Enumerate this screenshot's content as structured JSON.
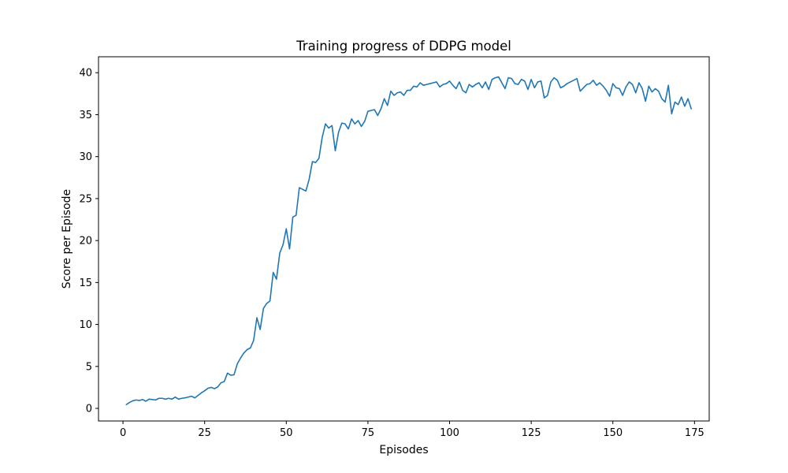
{
  "chart_data": {
    "type": "line",
    "title": "Training progress of DDPG model",
    "xlabel": "Episodes",
    "ylabel": "Score per Episode",
    "xlim": [
      -7.5,
      179.5
    ],
    "ylim": [
      -1.5,
      41.9
    ],
    "x_ticks": [
      0,
      25,
      50,
      75,
      100,
      125,
      150,
      175
    ],
    "y_ticks": [
      0,
      5,
      10,
      15,
      20,
      25,
      30,
      35,
      40
    ],
    "grid": false,
    "legend": "none",
    "series": [
      {
        "color": "#1f77b4",
        "x_start": 1,
        "x_step": 1,
        "values": [
          0.45,
          0.7,
          0.9,
          1.0,
          0.95,
          1.05,
          0.85,
          1.1,
          1.05,
          1.0,
          1.2,
          1.2,
          1.1,
          1.2,
          1.1,
          1.35,
          1.1,
          1.2,
          1.25,
          1.35,
          1.45,
          1.25,
          1.55,
          1.85,
          2.1,
          2.4,
          2.5,
          2.35,
          2.55,
          3.05,
          3.2,
          4.2,
          3.95,
          4.0,
          5.3,
          6.0,
          6.6,
          7.0,
          7.2,
          8.1,
          10.8,
          9.4,
          11.9,
          12.5,
          12.8,
          16.2,
          15.4,
          18.5,
          19.5,
          21.4,
          19.0,
          22.8,
          23.0,
          26.3,
          26.1,
          25.9,
          27.3,
          29.4,
          29.3,
          29.8,
          32.3,
          33.9,
          33.4,
          33.7,
          30.7,
          32.9,
          34.0,
          33.9,
          33.3,
          34.5,
          33.9,
          34.3,
          33.6,
          34.2,
          35.4,
          35.5,
          35.6,
          34.9,
          35.7,
          36.9,
          36.1,
          37.8,
          37.3,
          37.6,
          37.7,
          37.3,
          37.9,
          37.9,
          38.4,
          38.3,
          38.8,
          38.5,
          38.6,
          38.7,
          38.8,
          38.9,
          38.3,
          38.6,
          38.7,
          39.0,
          38.5,
          38.1,
          38.9,
          37.9,
          37.6,
          38.6,
          38.3,
          38.6,
          38.8,
          38.2,
          38.9,
          38.0,
          39.2,
          39.4,
          39.5,
          38.8,
          38.1,
          39.4,
          39.3,
          38.7,
          38.6,
          39.2,
          39.0,
          38.0,
          39.2,
          38.2,
          38.9,
          39.0,
          37.0,
          37.3,
          38.9,
          39.4,
          39.1,
          38.2,
          38.4,
          38.7,
          38.9,
          39.1,
          39.3,
          37.8,
          38.2,
          38.6,
          38.7,
          39.1,
          38.5,
          38.8,
          38.4,
          37.9,
          37.2,
          38.7,
          38.2,
          38.1,
          37.3,
          38.3,
          38.9,
          38.6,
          37.6,
          38.8,
          38.1,
          36.6,
          38.4,
          37.7,
          38.1,
          37.8,
          36.9,
          36.5,
          38.5,
          35.1,
          36.5,
          36.2,
          37.1,
          36.0,
          36.9,
          35.7
        ]
      }
    ]
  }
}
